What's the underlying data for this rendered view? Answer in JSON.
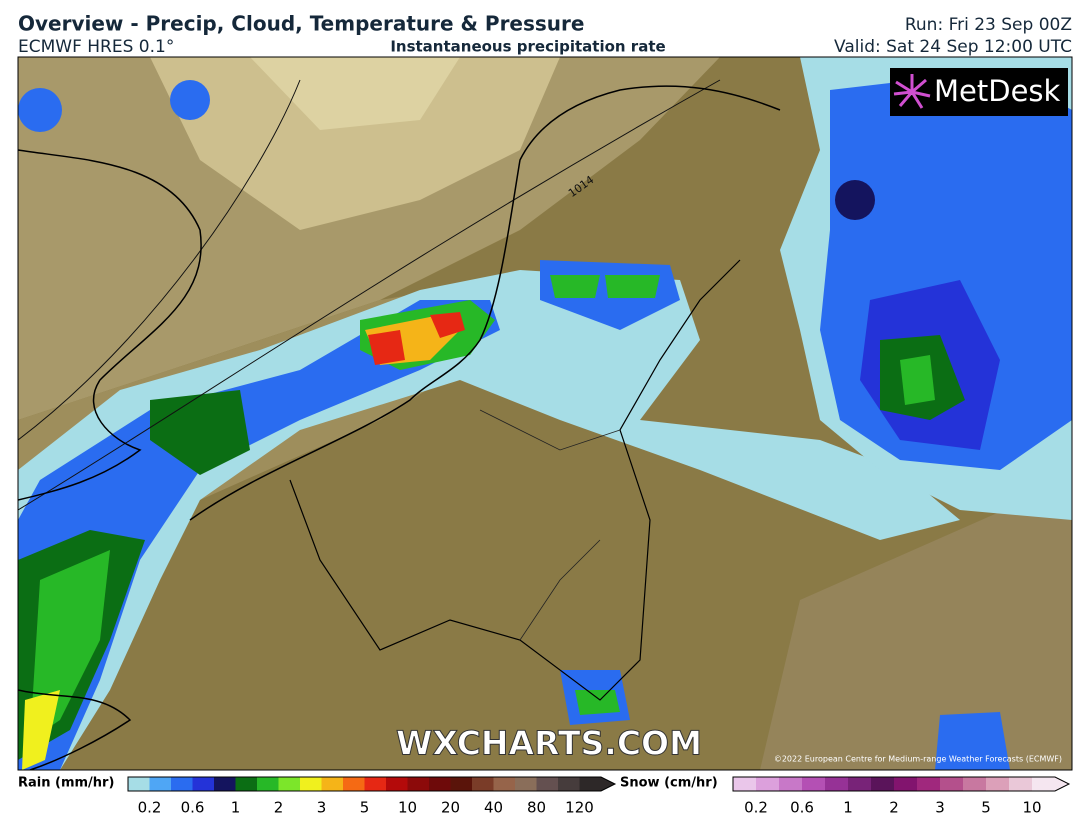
{
  "header": {
    "title": "Overview - Precip, Cloud, Temperature & Pressure",
    "model": "ECMWF HRES 0.1°",
    "subtitle": "Instantaneous precipitation rate",
    "run": "Run: Fri 23 Sep 00Z",
    "valid": "Valid: Sat 24 Sep 12:00 UTC"
  },
  "map": {
    "logo": "MetDesk",
    "watermark": "WXCHARTS.COM",
    "copyright": "©2022 European Centre for Medium-range Weather Forecasts (ECMWF)",
    "isobar_label": "1014"
  },
  "legend": {
    "rain": {
      "label": "Rain (mm/hr)",
      "colors": [
        "#a6dde6",
        "#4fa6f5",
        "#2a6cf0",
        "#2433d8",
        "#14145e",
        "#0b6e14",
        "#27b827",
        "#7ce62a",
        "#f0f01e",
        "#f5b418",
        "#f56a14",
        "#e62814",
        "#b40a0a",
        "#8c0a0a",
        "#6e0a0a",
        "#5a140a",
        "#7a3c28",
        "#96644a",
        "#8a6e5a",
        "#645050",
        "#463c3c",
        "#2d2828"
      ],
      "ticks": [
        0.2,
        0.6,
        1,
        2,
        3,
        5,
        10,
        20,
        40,
        80,
        120
      ]
    },
    "snow": {
      "label": "Snow (cm/hr)",
      "colors": [
        "#eac6ea",
        "#dca0dc",
        "#c878c8",
        "#b450b4",
        "#963296",
        "#782378",
        "#5a145a",
        "#82146e",
        "#a0287d",
        "#b4508c",
        "#c878a0",
        "#dca0b9",
        "#eac8d8",
        "#f5e6f0"
      ],
      "ticks": [
        0.2,
        0.6,
        1,
        2,
        3,
        5,
        10
      ]
    }
  }
}
